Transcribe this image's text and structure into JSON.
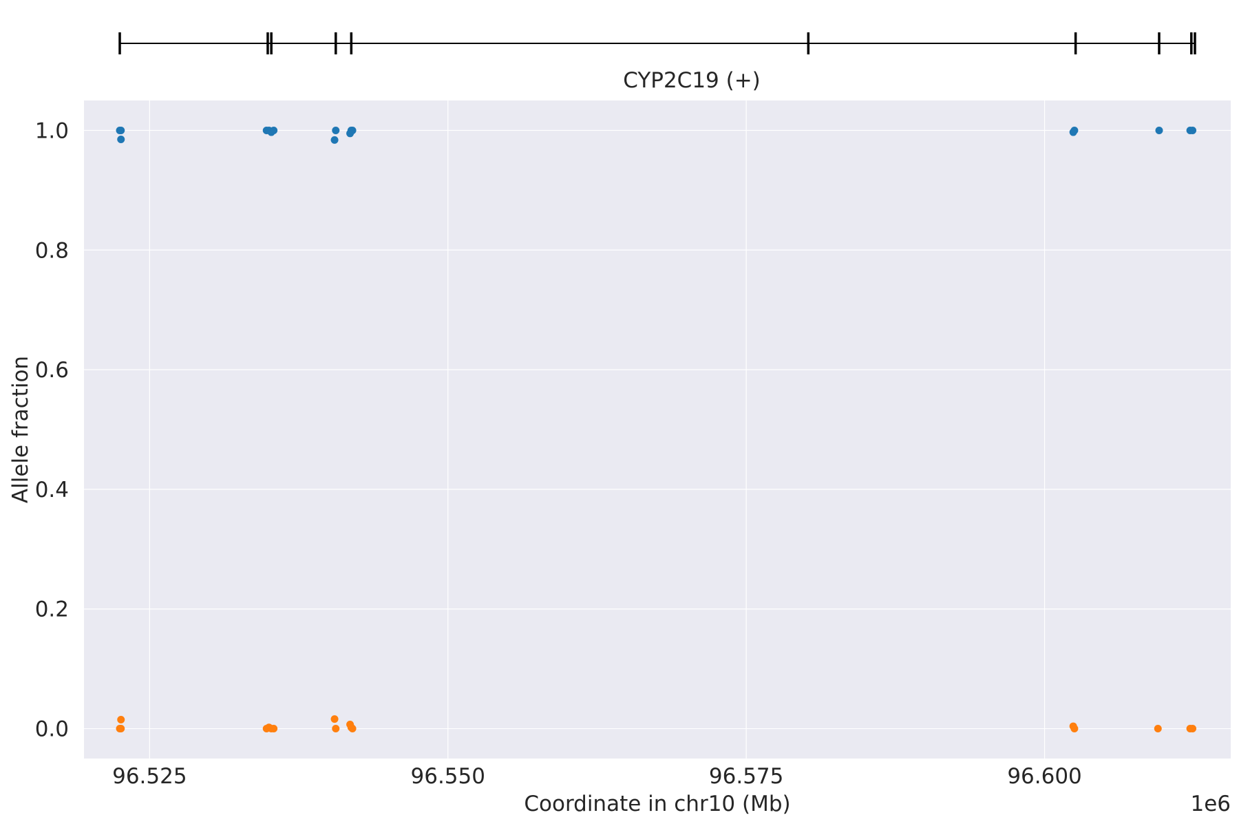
{
  "chart_data": {
    "type": "scatter",
    "gene_track": {
      "label": "CYP2C19 (+)",
      "start": 96522500,
      "end": 96612600,
      "exon_positions": [
        96522500,
        96534900,
        96535200,
        96540600,
        96541900,
        96580200,
        96602600,
        96609600,
        96612300,
        96612600
      ]
    },
    "xlabel": "Coordinate in chr10 (Mb)",
    "ylabel": "Allele fraction",
    "x_offset_label": "1e6",
    "xlim": [
      96519500,
      96615600
    ],
    "ylim": [
      -0.05,
      1.05
    ],
    "x_ticks": [
      96525000,
      96550000,
      96575000,
      96600000
    ],
    "x_tick_labels": [
      "96.525",
      "96.550",
      "96.575",
      "96.600"
    ],
    "y_ticks": [
      0.0,
      0.2,
      0.4,
      0.6,
      0.8,
      1.0
    ],
    "y_tick_labels": [
      "0.0",
      "0.2",
      "0.4",
      "0.6",
      "0.8",
      "1.0"
    ],
    "grid": true,
    "series": [
      {
        "color": "#1f77b4",
        "points": [
          [
            96522500,
            1.0
          ],
          [
            96522600,
            1.0
          ],
          [
            96522600,
            0.985
          ],
          [
            96534800,
            1.0
          ],
          [
            96535000,
            1.0
          ],
          [
            96535200,
            0.997
          ],
          [
            96535400,
            1.0
          ],
          [
            96540600,
            1.0
          ],
          [
            96540500,
            0.984
          ],
          [
            96541800,
            0.995
          ],
          [
            96542000,
            1.0
          ],
          [
            96541900,
            1.0
          ],
          [
            96602500,
            1.0
          ],
          [
            96602400,
            0.997
          ],
          [
            96609600,
            1.0
          ],
          [
            96612200,
            1.0
          ],
          [
            96612400,
            1.0
          ]
        ]
      },
      {
        "color": "#ff7f0e",
        "points": [
          [
            96522600,
            0.015
          ],
          [
            96522500,
            0.0
          ],
          [
            96522600,
            0.0
          ],
          [
            96534800,
            0.0
          ],
          [
            96535000,
            0.002
          ],
          [
            96535200,
            0.0
          ],
          [
            96535400,
            0.0
          ],
          [
            96540500,
            0.016
          ],
          [
            96540600,
            0.0
          ],
          [
            96541800,
            0.007
          ],
          [
            96542000,
            0.0
          ],
          [
            96541900,
            0.002
          ],
          [
            96602400,
            0.004
          ],
          [
            96602500,
            0.0
          ],
          [
            96609500,
            0.0
          ],
          [
            96612200,
            0.0
          ],
          [
            96612400,
            0.0
          ]
        ]
      }
    ]
  }
}
